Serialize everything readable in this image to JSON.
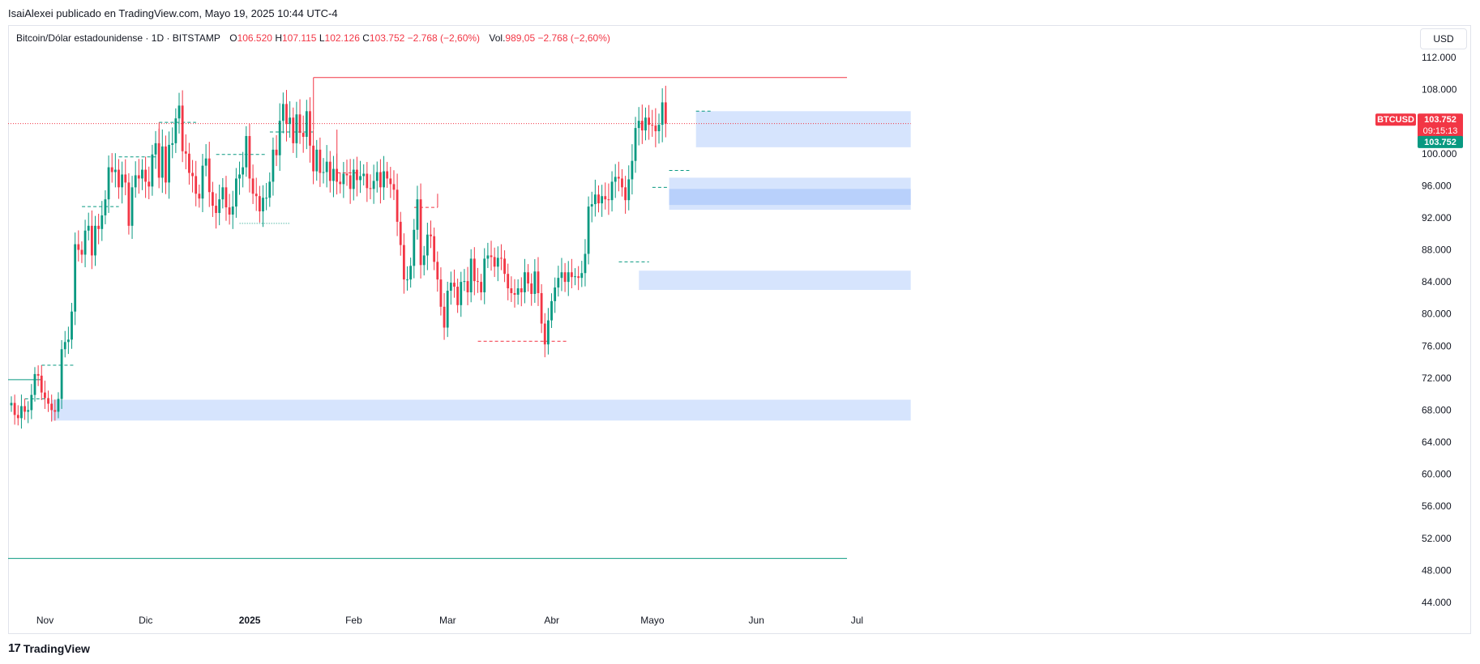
{
  "header": {
    "publisher": "IsaiAlexei publicado en TradingView.com, Mayo 19, 2025 10:44 UTC-4"
  },
  "legend": {
    "symbol": "Bitcoin/Dólar estadounidense · 1D · BITSTAMP",
    "open_label": "O",
    "open": "106.520",
    "high_label": "H",
    "high": "107.115",
    "low_label": "L",
    "low": "102.126",
    "close_label": "C",
    "close": "103.752",
    "change": "−2.768 (−2,60%)",
    "vol_label": "Vol.",
    "vol": "989,05",
    "vol_change": "−2.768 (−2,60%)"
  },
  "currency": "USD",
  "price_tags": {
    "symbol": "BTCUSD",
    "price": "103.752",
    "countdown": "09:15:13",
    "close": "103.752"
  },
  "footer": {
    "brand": "TradingView",
    "logo_icon": "tradingview-logo-icon"
  },
  "colors": {
    "up": "#089981",
    "down": "#f23645",
    "zone": "#d6e4fd",
    "zone_strong": "#b8d0fb",
    "grid": "#f0f3fa"
  },
  "chart_data": {
    "type": "candlestick",
    "y_axis": {
      "min": 42000,
      "max": 114000,
      "ticks": [
        44000,
        48000,
        52000,
        56000,
        60000,
        64000,
        68000,
        72000,
        76000,
        80000,
        84000,
        88000,
        92000,
        96000,
        100000,
        104000,
        108000,
        112000
      ],
      "tick_labels": [
        "44.000",
        "48.000",
        "52.000",
        "56.000",
        "60.000",
        "64.000",
        "68.000",
        "72.000",
        "76.000",
        "80.000",
        "84.000",
        "88.000",
        "92.000",
        "96.000",
        "100.000",
        "104.000",
        "108.000",
        "112.000"
      ]
    },
    "x_axis": {
      "start": "2024-10-21",
      "end": "2025-07-17",
      "ticks": [
        {
          "label": "Nov",
          "date": "2024-11-01"
        },
        {
          "label": "Dic",
          "date": "2024-12-01"
        },
        {
          "label": "2025",
          "date": "2025-01-01"
        },
        {
          "label": "Feb",
          "date": "2025-02-01"
        },
        {
          "label": "Mar",
          "date": "2025-03-01"
        },
        {
          "label": "Abr",
          "date": "2025-04-01"
        },
        {
          "label": "Mayo",
          "date": "2025-05-01"
        },
        {
          "label": "Jun",
          "date": "2025-06-01"
        },
        {
          "label": "Jul",
          "date": "2025-07-01"
        }
      ]
    },
    "series_start": "2024-10-21",
    "closes": [
      68900,
      67400,
      67000,
      68500,
      67800,
      68000,
      69900,
      72500,
      72300,
      70200,
      69500,
      68800,
      68000,
      67800,
      69400,
      75600,
      76500,
      76800,
      80300,
      88700,
      88000,
      87400,
      90400,
      91000,
      87300,
      91000,
      90600,
      92300,
      94300,
      98300,
      97700,
      98000,
      95800,
      97400,
      96400,
      91000,
      95800,
      97300,
      96900,
      98000,
      96500,
      95900,
      99900,
      101300,
      97000,
      100900,
      96400,
      101100,
      101300,
      104400,
      106000,
      100300,
      100000,
      97600,
      97200,
      95000,
      94400,
      98500,
      99400,
      95200,
      93500,
      92600,
      94300,
      95800,
      93300,
      92400,
      93400,
      96900,
      97400,
      98300,
      102200,
      96900,
      95000,
      94700,
      92800,
      94500,
      94500,
      96500,
      100500,
      99800,
      104100,
      106200,
      103700,
      104500,
      101300,
      104900,
      102600,
      102100,
      105300,
      101000,
      97800,
      100500,
      97600,
      97700,
      99000,
      96600,
      98100,
      96500,
      96200,
      97500,
      97300,
      95600,
      98000,
      96700,
      97200,
      97500,
      95700,
      95600,
      96600,
      97700,
      95800,
      97800,
      96900,
      96200,
      95500,
      91500,
      88600,
      84300,
      84300,
      86000,
      90500,
      94300,
      86100,
      87300,
      89900,
      89700,
      86500,
      84300,
      80900,
      78300,
      82900,
      83900,
      83400,
      81100,
      84000,
      84100,
      82700,
      86900,
      84100,
      84000,
      82700,
      86900,
      87300,
      87100,
      85900,
      87000,
      86900,
      85000,
      83200,
      82600,
      82400,
      83200,
      82700,
      85200,
      83800,
      82500,
      85300,
      82600,
      78800,
      76200,
      79200,
      81600,
      83300,
      84500,
      85200,
      84000,
      85200,
      84600,
      84700,
      84500,
      85100,
      87500,
      93400,
      93700,
      94900,
      93800,
      94700,
      94300,
      94200,
      96500,
      97100,
      96900,
      95800,
      94200,
      96800,
      99100,
      103200,
      104100,
      102900,
      104500,
      103600,
      103500,
      102800,
      103600,
      106400,
      103752
    ]
  }
}
